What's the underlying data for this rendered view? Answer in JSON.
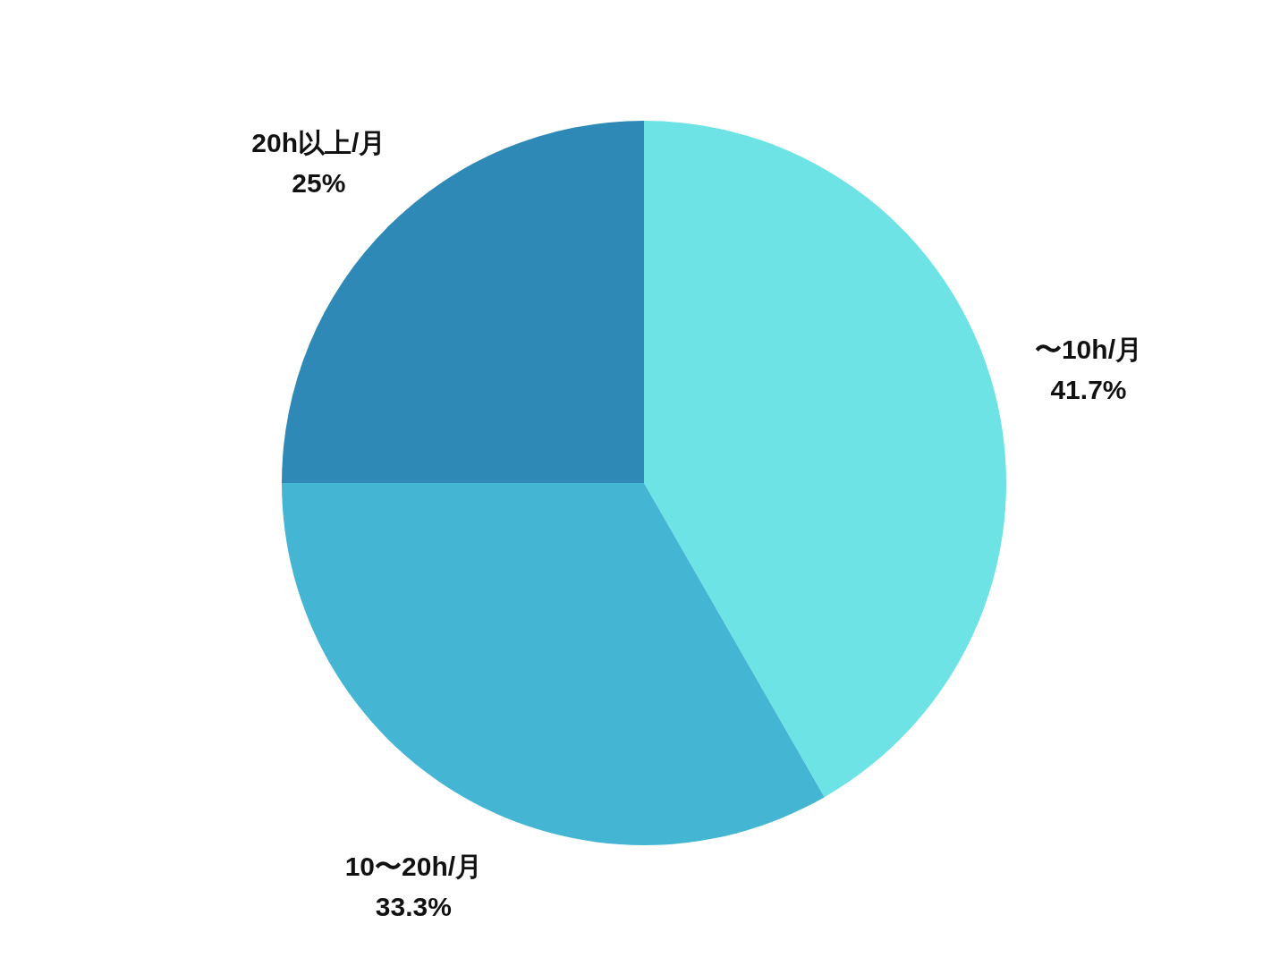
{
  "chart_data": {
    "type": "pie",
    "categories": [
      "〜10h/月",
      "10〜20h/月",
      "20h以上/月"
    ],
    "values": [
      41.7,
      33.3,
      25
    ],
    "colors": [
      "#6ee3e6",
      "#44b6d4",
      "#2e89b6"
    ],
    "value_labels": [
      "41.7%",
      "33.3%",
      "25%"
    ]
  }
}
